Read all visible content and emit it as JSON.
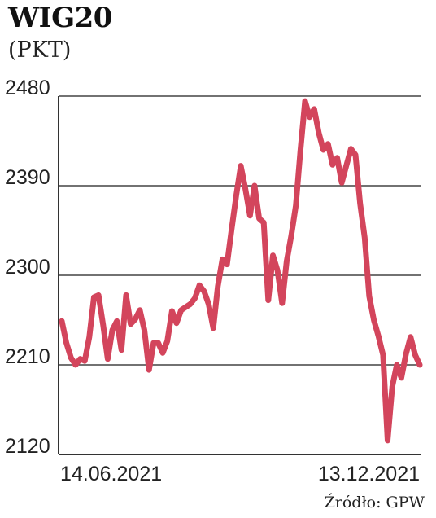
{
  "chart_data": {
    "type": "line",
    "title": "WIG20",
    "subtitle": "(PKT)",
    "xlabel": "",
    "ylabel": "",
    "ylim": [
      2120,
      2480
    ],
    "yticks": [
      "2480",
      "2390",
      "2300",
      "2210",
      "2120"
    ],
    "ytick_values": [
      2480,
      2390,
      2300,
      2210,
      2120
    ],
    "xtick_labels": [
      "14.06.2021",
      "13.12.2021"
    ],
    "grid": "horizontal",
    "legend": "none",
    "line_color": "#d3455c",
    "series": [
      {
        "values": [
          2254,
          2232,
          2217,
          2210,
          2216,
          2214,
          2238,
          2278,
          2280,
          2250,
          2216,
          2245,
          2254,
          2225,
          2280,
          2251,
          2256,
          2265,
          2245,
          2205,
          2232,
          2232,
          2222,
          2234,
          2264,
          2252,
          2265,
          2268,
          2271,
          2277,
          2290,
          2284,
          2271,
          2247,
          2289,
          2316,
          2311,
          2346,
          2380,
          2410,
          2387,
          2360,
          2390,
          2357,
          2353,
          2275,
          2320,
          2305,
          2272,
          2314,
          2340,
          2370,
          2425,
          2475,
          2459,
          2467,
          2443,
          2426,
          2432,
          2411,
          2418,
          2393,
          2410,
          2427,
          2421,
          2372,
          2338,
          2279,
          2255,
          2239,
          2220,
          2134,
          2188,
          2210,
          2197,
          2221,
          2238,
          2220,
          2210
        ]
      }
    ]
  },
  "source_label": "Źródło: GPW"
}
